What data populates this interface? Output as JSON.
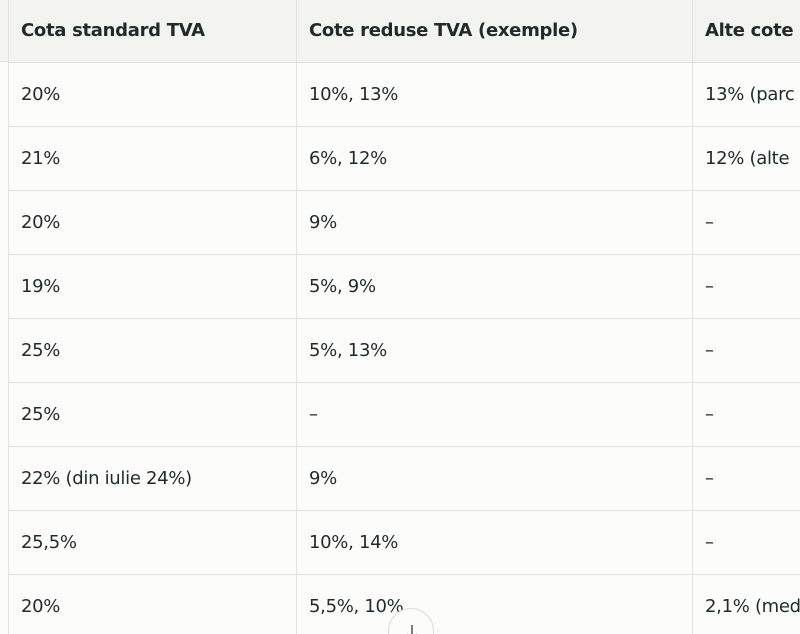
{
  "table": {
    "header": [
      "Cota standard TVA",
      "Cote reduse TVA (exemple)",
      "Alte cote"
    ],
    "rows": [
      [
        "20%",
        "10%, 13%",
        "13% (parc"
      ],
      [
        "21%",
        "6%, 12%",
        "12% (alte"
      ],
      [
        "20%",
        "9%",
        "–"
      ],
      [
        "19%",
        "5%, 9%",
        "–"
      ],
      [
        "25%",
        "5%, 13%",
        "–"
      ],
      [
        "25%",
        "–",
        "–"
      ],
      [
        "22% (din iulie 24%)",
        "9%",
        "–"
      ],
      [
        "25,5%",
        "10%, 14%",
        "–"
      ],
      [
        "20%",
        "5,5%, 10%",
        "2,1% (med"
      ]
    ]
  }
}
